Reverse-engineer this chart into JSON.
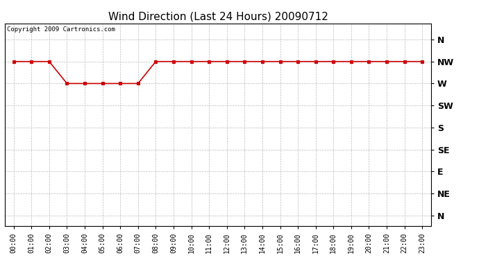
{
  "title": "Wind Direction (Last 24 Hours) 20090712",
  "copyright_text": "Copyright 2009 Cartronics.com",
  "hours": [
    0,
    1,
    2,
    3,
    4,
    5,
    6,
    7,
    8,
    9,
    10,
    11,
    12,
    13,
    14,
    15,
    16,
    17,
    18,
    19,
    20,
    21,
    22,
    23
  ],
  "hour_labels": [
    "00:00",
    "01:00",
    "02:00",
    "03:00",
    "04:00",
    "05:00",
    "06:00",
    "07:00",
    "08:00",
    "09:00",
    "10:00",
    "11:00",
    "12:00",
    "13:00",
    "14:00",
    "15:00",
    "16:00",
    "17:00",
    "18:00",
    "19:00",
    "20:00",
    "21:00",
    "22:00",
    "23:00"
  ],
  "wind_values": [
    315,
    315,
    315,
    270,
    270,
    270,
    270,
    270,
    315,
    315,
    315,
    315,
    315,
    315,
    315,
    315,
    315,
    315,
    315,
    315,
    315,
    315,
    315,
    315
  ],
  "y_ticks": [
    360,
    315,
    270,
    225,
    180,
    135,
    90,
    45,
    0
  ],
  "y_tick_labels": [
    "N",
    "NW",
    "W",
    "SW",
    "S",
    "SE",
    "E",
    "NE",
    "N"
  ],
  "line_color": "#cc0000",
  "marker_color": "#cc0000",
  "bg_color": "#ffffff",
  "grid_color": "#bbbbbb",
  "title_fontsize": 11,
  "copyright_fontsize": 6.5,
  "tick_fontsize": 7,
  "ytick_fontsize": 9,
  "ylim_min": -22,
  "ylim_max": 393
}
